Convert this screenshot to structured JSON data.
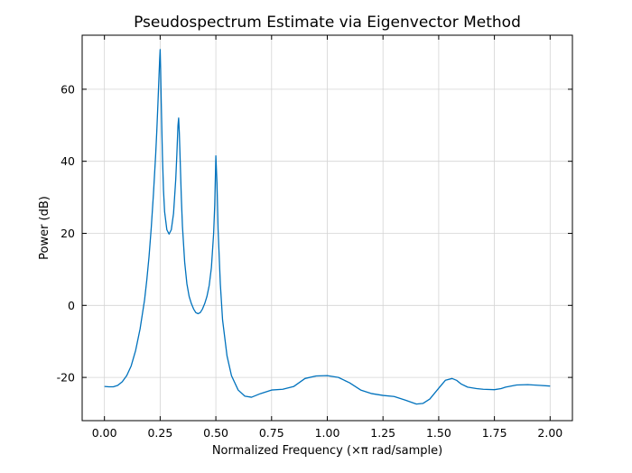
{
  "chart_data": {
    "type": "line",
    "title": "Pseudospectrum Estimate via Eigenvector Method",
    "xlabel": "Normalized Frequency (×π rad/sample)",
    "ylabel": "Power (dB)",
    "xlim": [
      -0.1,
      2.1
    ],
    "ylim": [
      -32,
      75
    ],
    "xticks": [
      0.0,
      0.25,
      0.5,
      0.75,
      1.0,
      1.25,
      1.5,
      1.75,
      2.0
    ],
    "xtick_labels": [
      "0.00",
      "0.25",
      "0.50",
      "0.75",
      "1.00",
      "1.25",
      "1.50",
      "1.75",
      "2.00"
    ],
    "yticks": [
      -20,
      0,
      20,
      40,
      60
    ],
    "ytick_labels": [
      "-20",
      "0",
      "20",
      "40",
      "60"
    ],
    "grid": true,
    "series": [
      {
        "color": "#0072BD",
        "x": [
          0.0,
          0.02,
          0.04,
          0.06,
          0.08,
          0.1,
          0.12,
          0.14,
          0.16,
          0.18,
          0.19,
          0.2,
          0.21,
          0.22,
          0.23,
          0.235,
          0.24,
          0.245,
          0.248,
          0.25,
          0.252,
          0.255,
          0.26,
          0.265,
          0.27,
          0.28,
          0.29,
          0.3,
          0.31,
          0.32,
          0.325,
          0.33,
          0.333,
          0.336,
          0.34,
          0.345,
          0.35,
          0.36,
          0.37,
          0.38,
          0.39,
          0.4,
          0.41,
          0.42,
          0.43,
          0.44,
          0.45,
          0.46,
          0.47,
          0.48,
          0.49,
          0.495,
          0.5,
          0.505,
          0.51,
          0.52,
          0.53,
          0.55,
          0.57,
          0.6,
          0.63,
          0.66,
          0.7,
          0.75,
          0.8,
          0.85,
          0.9,
          0.95,
          1.0,
          1.05,
          1.1,
          1.15,
          1.2,
          1.25,
          1.3,
          1.35,
          1.4,
          1.43,
          1.46,
          1.5,
          1.53,
          1.56,
          1.58,
          1.6,
          1.63,
          1.67,
          1.7,
          1.75,
          1.78,
          1.8,
          1.85,
          1.9,
          1.95,
          2.0
        ],
        "values": [
          -22.5,
          -22.6,
          -22.6,
          -22.2,
          -21.2,
          -19.5,
          -16.8,
          -12.5,
          -6.5,
          1.5,
          7.0,
          13.5,
          21.5,
          31.0,
          42.0,
          48.5,
          56.0,
          64.0,
          68.5,
          71.0,
          66.0,
          56.0,
          42.0,
          32.0,
          26.0,
          21.0,
          19.8,
          21.0,
          25.5,
          35.0,
          42.0,
          50.0,
          52.0,
          48.0,
          40.0,
          30.0,
          22.0,
          12.0,
          6.0,
          2.5,
          0.5,
          -1.0,
          -2.0,
          -2.3,
          -2.0,
          -1.0,
          0.5,
          2.5,
          5.5,
          10.5,
          20.0,
          28.0,
          41.5,
          34.0,
          21.0,
          6.0,
          -4.0,
          -14.0,
          -19.5,
          -23.5,
          -25.2,
          -25.5,
          -24.5,
          -23.5,
          -23.3,
          -22.5,
          -20.3,
          -19.6,
          -19.5,
          -20.0,
          -21.5,
          -23.5,
          -24.5,
          -25.0,
          -25.3,
          -26.3,
          -27.4,
          -27.2,
          -26.0,
          -23.0,
          -20.8,
          -20.3,
          -20.8,
          -21.8,
          -22.7,
          -23.1,
          -23.3,
          -23.4,
          -23.1,
          -22.7,
          -22.1,
          -22.0,
          -22.2,
          -22.4
        ]
      }
    ]
  }
}
